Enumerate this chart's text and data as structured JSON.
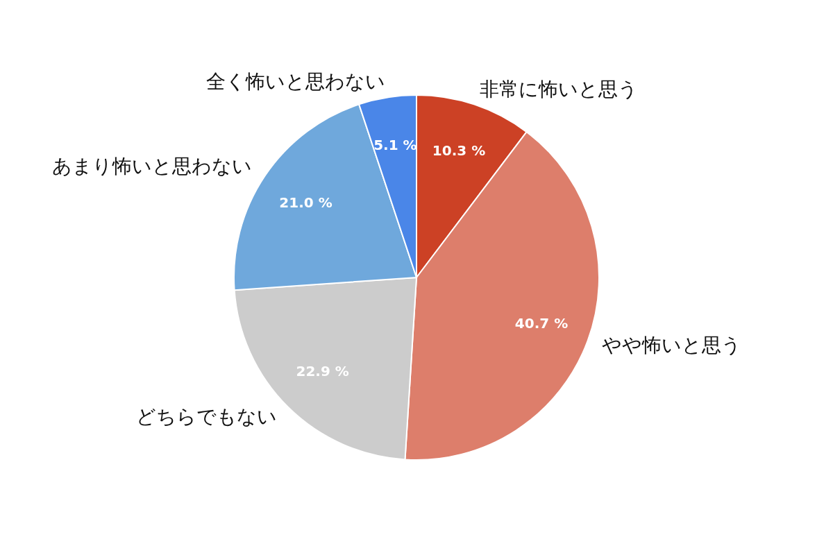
{
  "chart_data": {
    "type": "pie",
    "categories": [
      "非常に怖いと思う",
      "やや怖いと思う",
      "どちらでもない",
      "あまり怖いと思わない",
      "全く怖いと思わない"
    ],
    "values": [
      10.3,
      40.7,
      22.9,
      21.0,
      5.1
    ],
    "colors": [
      "#cc4125",
      "#dd7e6b",
      "#cccccc",
      "#6fa8dc",
      "#4a86e8"
    ],
    "value_labels": [
      "10.3 %",
      "40.7 %",
      "22.9 %",
      "21.0 %",
      "5.1 %"
    ]
  }
}
